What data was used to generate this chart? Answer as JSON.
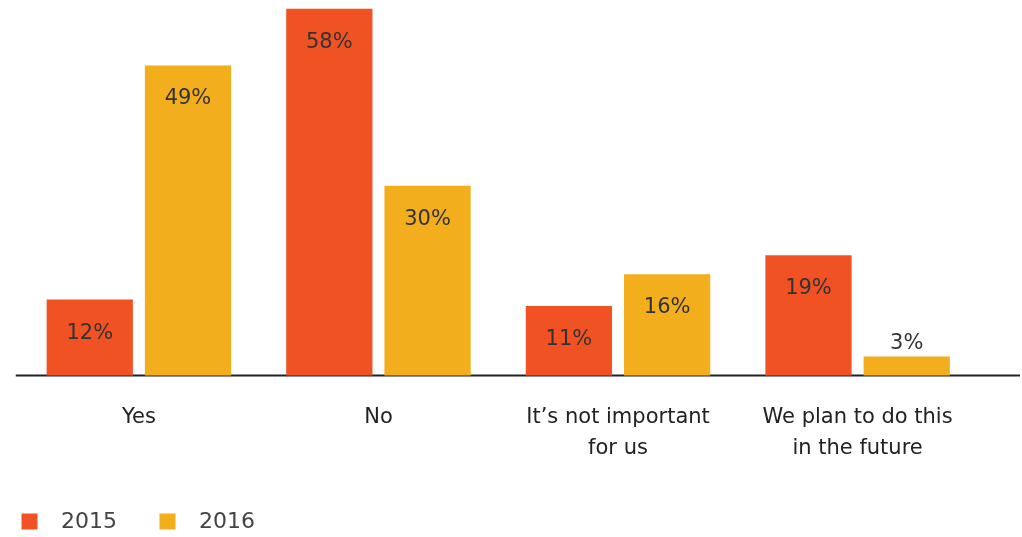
{
  "chart_data": {
    "type": "bar",
    "categories": [
      "Yes",
      "No",
      "It’s not important\nfor us",
      "We plan to do this\nin the future"
    ],
    "series": [
      {
        "name": "2015",
        "color": "#f05223",
        "values": [
          12,
          58,
          11,
          19
        ],
        "value_labels": [
          "12%",
          "58%",
          "11%",
          "19%"
        ]
      },
      {
        "name": "2016",
        "color": "#f3ae1d",
        "values": [
          49,
          30,
          16,
          3
        ],
        "value_labels": [
          "49%",
          "30%",
          "16%",
          "3%"
        ]
      }
    ],
    "legend": "bottom left"
  }
}
